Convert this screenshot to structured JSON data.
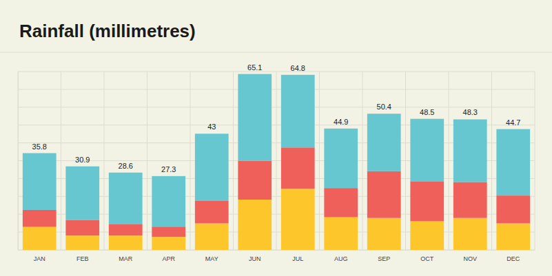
{
  "chart_data": {
    "type": "bar",
    "title": "Rainfall (millimetres)",
    "categories": [
      "JAN",
      "FEB",
      "MAR",
      "APR",
      "MAY",
      "JUN",
      "JUL",
      "AUG",
      "SEP",
      "OCT",
      "NOV",
      "DEC"
    ],
    "series": [
      {
        "color": "#fdc62b",
        "values": [
          8.5,
          5.3,
          5.3,
          4.8,
          9.8,
          18.6,
          22.6,
          12.1,
          11.8,
          10.6,
          11.8,
          9.8
        ]
      },
      {
        "color": "#f0605a",
        "values": [
          6.3,
          5.8,
          4.3,
          3.8,
          8.3,
          14.3,
          15.3,
          10.8,
          17.3,
          14.8,
          13.3,
          10.3
        ]
      },
      {
        "color": "#66c7d1",
        "values": [
          21.0,
          19.8,
          19.0,
          18.7,
          24.9,
          32.2,
          26.9,
          22.0,
          21.3,
          23.1,
          23.2,
          24.6
        ]
      }
    ],
    "totals": [
      35.8,
      30.9,
      28.6,
      27.3,
      43,
      65.1,
      64.8,
      44.9,
      50.4,
      48.5,
      48.3,
      44.7
    ],
    "stacked": true,
    "ylim": [
      0,
      66
    ],
    "yticks": [
      0,
      6.6,
      13.2,
      19.8,
      26.4,
      33,
      39.6,
      46.2,
      52.8,
      59.4,
      66
    ],
    "grid": true,
    "tick_labels": "x"
  }
}
